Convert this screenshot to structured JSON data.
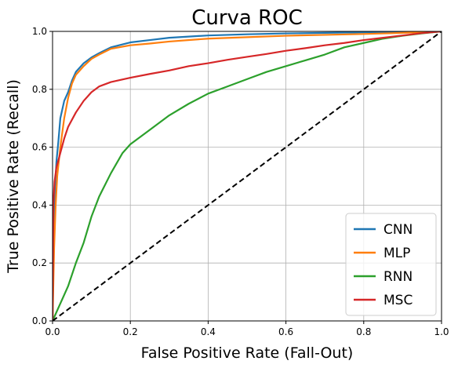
{
  "chart_data": {
    "type": "line",
    "title": "Curva ROC",
    "xlabel": "False Positive Rate (Fall-Out)",
    "ylabel": "True Positive Rate (Recall)",
    "xlim": [
      0,
      1
    ],
    "ylim": [
      0,
      1
    ],
    "xticks": [
      "0.0",
      "0.2",
      "0.4",
      "0.6",
      "0.8",
      "1.0"
    ],
    "yticks": [
      "0.0",
      "0.2",
      "0.4",
      "0.6",
      "0.8",
      "1.0"
    ],
    "grid": true,
    "legend_position": "lower-right",
    "series": [
      {
        "name": "CNN",
        "color": "#1f77b4",
        "points": [
          [
            0,
            0
          ],
          [
            0.003,
            0.3
          ],
          [
            0.006,
            0.45
          ],
          [
            0.01,
            0.55
          ],
          [
            0.015,
            0.62
          ],
          [
            0.02,
            0.7
          ],
          [
            0.03,
            0.76
          ],
          [
            0.04,
            0.79
          ],
          [
            0.05,
            0.83
          ],
          [
            0.06,
            0.86
          ],
          [
            0.08,
            0.89
          ],
          [
            0.1,
            0.91
          ],
          [
            0.12,
            0.925
          ],
          [
            0.15,
            0.945
          ],
          [
            0.2,
            0.962
          ],
          [
            0.25,
            0.97
          ],
          [
            0.3,
            0.978
          ],
          [
            0.4,
            0.986
          ],
          [
            0.5,
            0.99
          ],
          [
            0.6,
            0.993
          ],
          [
            0.7,
            0.995
          ],
          [
            0.8,
            0.997
          ],
          [
            0.9,
            0.999
          ],
          [
            1,
            1
          ]
        ]
      },
      {
        "name": "MLP",
        "color": "#ff7f0e",
        "points": [
          [
            0,
            0
          ],
          [
            0.004,
            0.25
          ],
          [
            0.008,
            0.4
          ],
          [
            0.012,
            0.5
          ],
          [
            0.02,
            0.6
          ],
          [
            0.03,
            0.7
          ],
          [
            0.04,
            0.77
          ],
          [
            0.05,
            0.82
          ],
          [
            0.06,
            0.85
          ],
          [
            0.08,
            0.88
          ],
          [
            0.1,
            0.905
          ],
          [
            0.12,
            0.92
          ],
          [
            0.15,
            0.94
          ],
          [
            0.2,
            0.952
          ],
          [
            0.25,
            0.958
          ],
          [
            0.3,
            0.965
          ],
          [
            0.4,
            0.975
          ],
          [
            0.5,
            0.98
          ],
          [
            0.6,
            0.985
          ],
          [
            0.7,
            0.988
          ],
          [
            0.8,
            0.991
          ],
          [
            0.9,
            0.995
          ],
          [
            1,
            1
          ]
        ]
      },
      {
        "name": "RNN",
        "color": "#2ca02c",
        "points": [
          [
            0,
            0
          ],
          [
            0.02,
            0.06
          ],
          [
            0.04,
            0.12
          ],
          [
            0.06,
            0.2
          ],
          [
            0.08,
            0.27
          ],
          [
            0.1,
            0.36
          ],
          [
            0.12,
            0.43
          ],
          [
            0.15,
            0.51
          ],
          [
            0.18,
            0.58
          ],
          [
            0.2,
            0.61
          ],
          [
            0.25,
            0.66
          ],
          [
            0.3,
            0.71
          ],
          [
            0.35,
            0.75
          ],
          [
            0.4,
            0.785
          ],
          [
            0.45,
            0.81
          ],
          [
            0.5,
            0.835
          ],
          [
            0.55,
            0.86
          ],
          [
            0.6,
            0.88
          ],
          [
            0.65,
            0.9
          ],
          [
            0.7,
            0.92
          ],
          [
            0.75,
            0.945
          ],
          [
            0.8,
            0.96
          ],
          [
            0.85,
            0.975
          ],
          [
            0.9,
            0.985
          ],
          [
            0.95,
            0.993
          ],
          [
            1,
            1
          ]
        ]
      },
      {
        "name": "MSC",
        "color": "#d62728",
        "points": [
          [
            0,
            0
          ],
          [
            0.002,
            0.4
          ],
          [
            0.005,
            0.48
          ],
          [
            0.01,
            0.53
          ],
          [
            0.02,
            0.58
          ],
          [
            0.03,
            0.63
          ],
          [
            0.04,
            0.67
          ],
          [
            0.06,
            0.72
          ],
          [
            0.08,
            0.76
          ],
          [
            0.1,
            0.79
          ],
          [
            0.12,
            0.81
          ],
          [
            0.15,
            0.825
          ],
          [
            0.2,
            0.84
          ],
          [
            0.25,
            0.853
          ],
          [
            0.3,
            0.865
          ],
          [
            0.35,
            0.88
          ],
          [
            0.4,
            0.89
          ],
          [
            0.45,
            0.902
          ],
          [
            0.5,
            0.912
          ],
          [
            0.55,
            0.922
          ],
          [
            0.6,
            0.933
          ],
          [
            0.65,
            0.942
          ],
          [
            0.7,
            0.952
          ],
          [
            0.75,
            0.96
          ],
          [
            0.8,
            0.97
          ],
          [
            0.85,
            0.978
          ],
          [
            0.9,
            0.986
          ],
          [
            0.95,
            0.994
          ],
          [
            1,
            1
          ]
        ]
      }
    ],
    "reference_line": {
      "style": "dashed",
      "color": "#000000",
      "points": [
        [
          0,
          0
        ],
        [
          1,
          1
        ]
      ]
    }
  }
}
